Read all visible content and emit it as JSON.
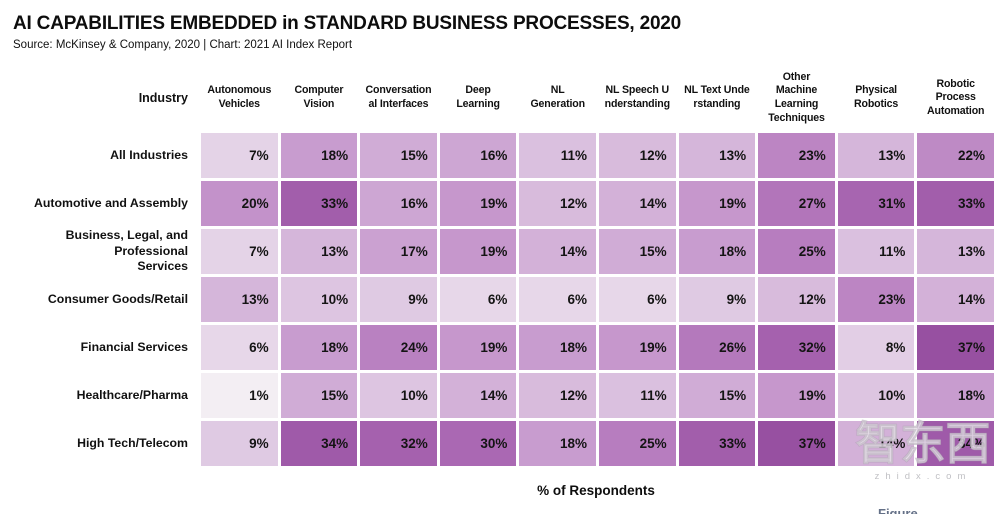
{
  "title": "AI CAPABILITIES EMBEDDED in STANDARD BUSINESS PROCESSES, 2020",
  "source": "Source: McKinsey & Company, 2020 | Chart: 2021 AI Index Report",
  "chart_data": {
    "type": "heatmap",
    "row_header": "Industry",
    "columns": [
      "Autonomous\nVehicles",
      "Computer\nVision",
      "Conversation\nal Interfaces",
      "Deep\nLearning",
      "NL\nGeneration",
      "NL Speech U\nnderstanding",
      "NL Text Unde\nrstanding",
      "Other\nMachine\nLearning\nTechniques",
      "Physical\nRobotics",
      "Robotic\nProcess\nAutomation"
    ],
    "rows": [
      {
        "label": "All Industries",
        "values": [
          7,
          18,
          15,
          16,
          11,
          12,
          13,
          23,
          13,
          22
        ]
      },
      {
        "label": "Automotive and Assembly",
        "values": [
          20,
          33,
          16,
          19,
          12,
          14,
          19,
          27,
          31,
          33
        ]
      },
      {
        "label": "Business, Legal, and Professional\nServices",
        "values": [
          7,
          13,
          17,
          19,
          14,
          15,
          18,
          25,
          11,
          13
        ]
      },
      {
        "label": "Consumer Goods/Retail",
        "values": [
          13,
          10,
          9,
          6,
          6,
          6,
          9,
          12,
          23,
          14
        ]
      },
      {
        "label": "Financial Services",
        "values": [
          6,
          18,
          24,
          19,
          18,
          19,
          26,
          32,
          8,
          37
        ]
      },
      {
        "label": "Healthcare/Pharma",
        "values": [
          1,
          15,
          10,
          14,
          12,
          11,
          15,
          19,
          10,
          18
        ]
      },
      {
        "label": "High Tech/Telecom",
        "values": [
          9,
          34,
          32,
          30,
          18,
          25,
          33,
          37,
          14,
          34
        ]
      }
    ],
    "value_suffix": "%",
    "xlabel": "% of Respondents",
    "value_range": [
      1,
      37
    ],
    "color_scale_stops": [
      [
        0,
        "#f5f2f5"
      ],
      [
        10,
        "#ddc5e1"
      ],
      [
        20,
        "#c392ca"
      ],
      [
        30,
        "#aa68b3"
      ],
      [
        40,
        "#8f4699"
      ]
    ]
  },
  "watermark": {
    "cn": "智东西",
    "en": "zhidx.com",
    "figure_partial": "Figure"
  }
}
